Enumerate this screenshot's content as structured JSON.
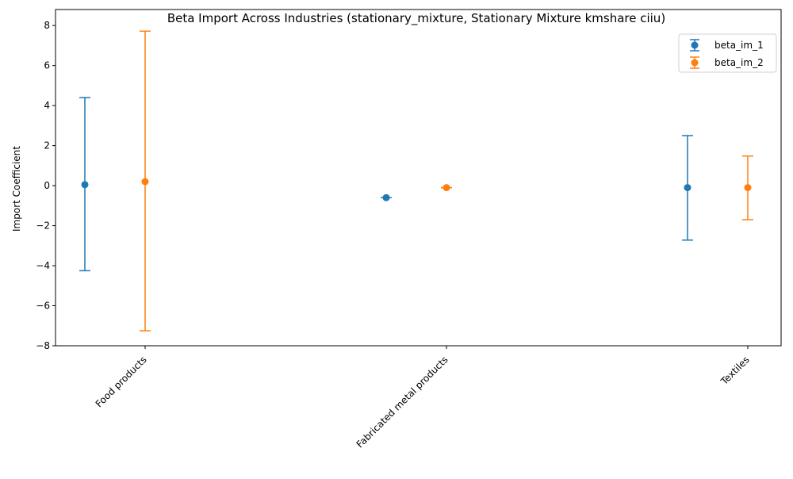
{
  "chart_data": {
    "type": "scatter",
    "variant": "errorbar",
    "title": "Beta Import Across Industries (stationary_mixture, Stationary Mixture kmshare ciiu)",
    "xlabel": "",
    "ylabel": "Import Coefficient",
    "categories": [
      "Food products",
      "Fabricated metal products",
      "Textiles"
    ],
    "ylim": [
      -8,
      8.8
    ],
    "yticks": [
      -8,
      -6,
      -4,
      -2,
      0,
      2,
      4,
      6,
      8
    ],
    "ytick_labels": [
      "−8",
      "−6",
      "−4",
      "−2",
      "0",
      "2",
      "4",
      "6",
      "8"
    ],
    "grid": false,
    "legend_position": "top-right",
    "series": [
      {
        "name": "beta_im_1",
        "color": "#1f77b4",
        "values": [
          0.05,
          -0.6,
          -0.1
        ],
        "lower": [
          -4.25,
          -0.6,
          -2.72
        ],
        "upper": [
          4.4,
          -0.6,
          2.5
        ]
      },
      {
        "name": "beta_im_2",
        "color": "#ff7f0e",
        "values": [
          0.2,
          -0.1,
          -0.1
        ],
        "lower": [
          -7.25,
          -0.1,
          -1.7
        ],
        "upper": [
          7.72,
          -0.1,
          1.48
        ]
      }
    ]
  }
}
